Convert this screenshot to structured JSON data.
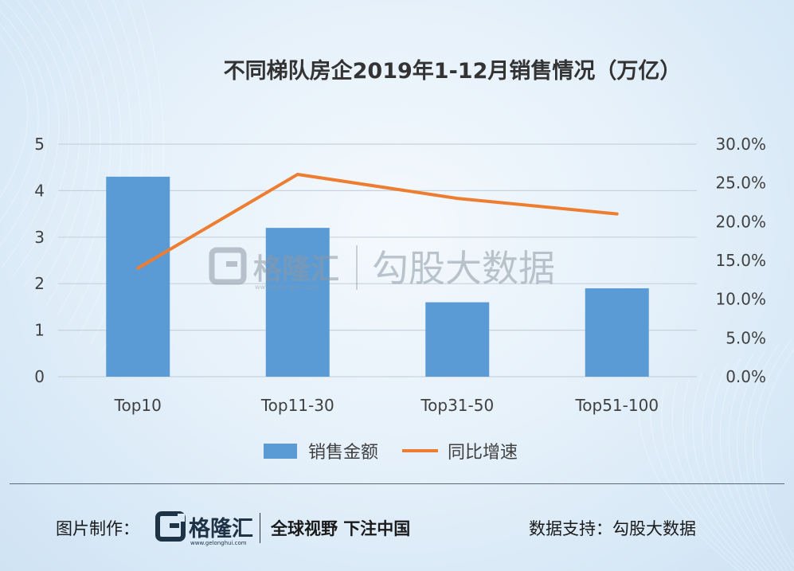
{
  "footer": {
    "credit_label": "图片制作：",
    "logo_text": "格隆汇",
    "logo_url": "www.gelonghui.com",
    "slogan": "全球视野 下注中国",
    "source_label": "数据支持：",
    "source_name": "勾股大数据"
  },
  "watermark": {
    "logo_text": "格隆汇",
    "logo_url": "www.gelonghui.com",
    "source_name": "勾股大数据"
  },
  "colors": {
    "bar": "#5b9bd5",
    "line": "#ed7d31",
    "grid": "#c7d2dc",
    "text": "#404040"
  },
  "chart_data": {
    "type": "bar",
    "title": "不同梯队房企2019年1-12月销售情况（万亿）",
    "categories": [
      "Top10",
      "Top11-30",
      "Top31-50",
      "Top51-100"
    ],
    "series": [
      {
        "name": "销售金额",
        "type": "bar",
        "axis": "left",
        "values": [
          4.3,
          3.2,
          1.6,
          1.9
        ]
      },
      {
        "name": "同比增速",
        "type": "line",
        "axis": "right",
        "values": [
          14.0,
          26.1,
          23.0,
          21.0
        ]
      }
    ],
    "ylim": [
      0,
      5
    ],
    "yticks": [
      "0",
      "1",
      "2",
      "3",
      "4",
      "5"
    ],
    "y2lim": [
      0,
      30
    ],
    "y2ticks": [
      "0.0%",
      "5.0%",
      "10.0%",
      "15.0%",
      "20.0%",
      "25.0%",
      "30.0%"
    ],
    "grid": true,
    "legend": "bottom-center"
  }
}
